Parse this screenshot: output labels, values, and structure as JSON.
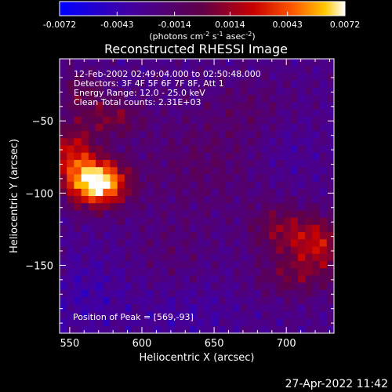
{
  "chart_data": {
    "type": "heatmap",
    "title": "Reconstructed RHESSI Image",
    "xlabel": "Heliocentric X (arcsec)",
    "ylabel": "Heliocentric Y (arcsec)",
    "xlim": [
      543,
      733
    ],
    "ylim": [
      -197,
      -7
    ],
    "x_ticks": [
      550,
      600,
      650,
      700
    ],
    "y_ticks": [
      -50,
      -100,
      -150
    ],
    "colorbar": {
      "ticks": [
        -0.0072,
        -0.0043,
        -0.0014,
        0.0014,
        0.0043,
        0.0072
      ],
      "tick_labels": [
        "-0.0072",
        "-0.0043",
        "-0.0014",
        "0.0014",
        "0.0043",
        "0.0072"
      ],
      "range": [
        -0.0072,
        0.0072
      ],
      "label_prefix": "(photons cm",
      "label_exp1": "-2",
      "label_mid": " s",
      "label_exp2": "-1",
      "label_mid2": " asec",
      "label_exp3": "-2",
      "label_suffix": ")"
    },
    "annotations": [
      "12-Feb-2002 02:49:04.000 to 02:50:48.000",
      "Detectors: 3F 4F 5F 6F 7F 8F, Att 1",
      "Energy Range: 12.0 - 25.0 keV",
      "Clean     Total counts: 2.31E+03"
    ],
    "peak_label": "Position of Peak = [569,-93]",
    "peak": {
      "x": 569,
      "y": -93,
      "value": 0.0072
    },
    "sources": [
      {
        "x": 569,
        "y": -93,
        "sx": 14,
        "sy": 11,
        "amp": 0.0105
      },
      {
        "x": 552,
        "y": -72,
        "sx": 11,
        "sy": 14,
        "amp": 0.0048
      },
      {
        "x": 580,
        "y": -48,
        "sx": 14,
        "sy": 9,
        "amp": 0.003
      },
      {
        "x": 558,
        "y": -30,
        "sx": 11,
        "sy": 10,
        "amp": 0.0022
      },
      {
        "x": 722,
        "y": -135,
        "sx": 14,
        "sy": 13,
        "amp": 0.0046
      },
      {
        "x": 695,
        "y": -125,
        "sx": 14,
        "sy": 12,
        "amp": 0.003
      },
      {
        "x": 705,
        "y": -158,
        "sx": 18,
        "sy": 10,
        "amp": 0.0024
      },
      {
        "x": 640,
        "y": -80,
        "sx": 30,
        "sy": 25,
        "amp": 0.0014
      },
      {
        "x": 675,
        "y": -40,
        "sx": 20,
        "sy": 15,
        "amp": 0.001
      },
      {
        "x": 620,
        "y": -140,
        "sx": 18,
        "sy": 16,
        "amp": 0.0008
      },
      {
        "x": 560,
        "y": -170,
        "sx": 20,
        "sy": 20,
        "amp": -0.0012
      },
      {
        "x": 630,
        "y": -185,
        "sx": 25,
        "sy": 15,
        "amp": -0.0009
      },
      {
        "x": 700,
        "y": -70,
        "sx": 15,
        "sy": 15,
        "amp": -0.0007
      }
    ]
  },
  "footer": {
    "timestamp": "27-Apr-2022 11:42"
  }
}
